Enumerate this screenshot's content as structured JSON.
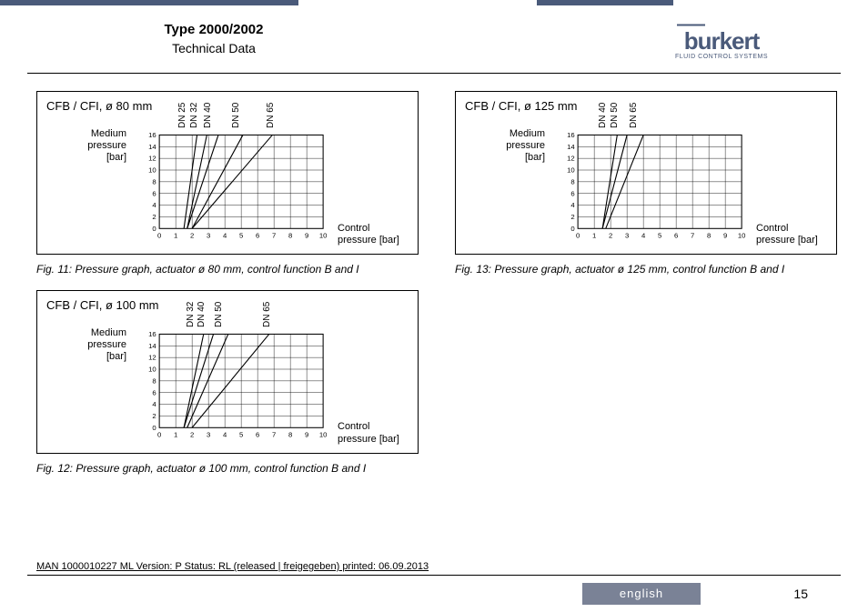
{
  "header": {
    "title": "Type 2000/2002",
    "subtitle": "Technical Data",
    "logo_main": "burkert",
    "logo_sub": "FLUID CONTROL SYSTEMS"
  },
  "charts": [
    {
      "id": "fig11",
      "box_title": "CFB / CFI, ø 80 mm",
      "caption": "Fig. 11:   Pressure graph, actuator ø 80 mm, control function B and I",
      "ylabel_line1": "Medium",
      "ylabel_line2": "pressure",
      "ylabel_line3": "[bar]",
      "xlabel_line1": "Control",
      "xlabel_line2": "pressure [bar]",
      "xlim": [
        0,
        10
      ],
      "ylim": [
        0,
        16
      ],
      "xticks": [
        0,
        1,
        2,
        3,
        4,
        5,
        6,
        7,
        8,
        9,
        10
      ],
      "yticks": [
        0,
        2,
        4,
        6,
        8,
        10,
        12,
        14,
        16
      ],
      "background_color": "#ffffff",
      "grid_color": "#000000",
      "line_color": "#000000",
      "line_width": 1.3,
      "series": [
        {
          "label": "DN 25",
          "label_x": 2.3,
          "points": [
            [
              1.5,
              0
            ],
            [
              2.3,
              16
            ]
          ]
        },
        {
          "label": "DN 32",
          "label_x": 2.9,
          "points": [
            [
              1.7,
              0
            ],
            [
              2.9,
              16
            ]
          ]
        },
        {
          "label": "DN 40",
          "label_x": 3.6,
          "points": [
            [
              1.7,
              0
            ],
            [
              3.6,
              16
            ]
          ]
        },
        {
          "label": "DN 50",
          "label_x": 5.1,
          "points": [
            [
              2,
              0
            ],
            [
              5.1,
              16
            ]
          ]
        },
        {
          "label": "DN 65",
          "label_x": 6.9,
          "points": [
            [
              2,
              0
            ],
            [
              6.9,
              16
            ]
          ]
        }
      ]
    },
    {
      "id": "fig12",
      "box_title": "CFB / CFI, ø 100 mm",
      "caption": "Fig. 12:   Pressure graph, actuator ø 100 mm, control function B and I",
      "ylabel_line1": "Medium",
      "ylabel_line2": "pressure",
      "ylabel_line3": "[bar]",
      "xlabel_line1": "Control",
      "xlabel_line2": "pressure [bar]",
      "xlim": [
        0,
        10
      ],
      "ylim": [
        0,
        16
      ],
      "xticks": [
        0,
        1,
        2,
        3,
        4,
        5,
        6,
        7,
        8,
        9,
        10
      ],
      "yticks": [
        0,
        2,
        4,
        6,
        8,
        10,
        12,
        14,
        16
      ],
      "background_color": "#ffffff",
      "grid_color": "#000000",
      "line_color": "#000000",
      "line_width": 1.3,
      "series": [
        {
          "label": "DN 32",
          "label_x": 2.7,
          "points": [
            [
              1.5,
              0
            ],
            [
              2.7,
              16
            ]
          ]
        },
        {
          "label": "DN 40",
          "label_x": 3.3,
          "points": [
            [
              1.5,
              0
            ],
            [
              3.3,
              16
            ]
          ]
        },
        {
          "label": "DN 50",
          "label_x": 4.2,
          "points": [
            [
              1.7,
              0
            ],
            [
              4.2,
              16
            ]
          ]
        },
        {
          "label": "DN 65",
          "label_x": 6.7,
          "points": [
            [
              2,
              0
            ],
            [
              6.7,
              16
            ]
          ]
        }
      ]
    },
    {
      "id": "fig13",
      "box_title": "CFB / CFI, ø 125 mm",
      "caption": "Fig. 13:   Pressure graph, actuator ø 125 mm, control function B and I",
      "ylabel_line1": "Medium",
      "ylabel_line2": "pressure",
      "ylabel_line3": "[bar]",
      "xlabel_line1": "Control",
      "xlabel_line2": "pressure [bar]",
      "xlim": [
        0,
        10
      ],
      "ylim": [
        0,
        16
      ],
      "xticks": [
        0,
        1,
        2,
        3,
        4,
        5,
        6,
        7,
        8,
        9,
        10
      ],
      "yticks": [
        0,
        2,
        4,
        6,
        8,
        10,
        12,
        14,
        16
      ],
      "background_color": "#ffffff",
      "grid_color": "#000000",
      "line_color": "#000000",
      "line_width": 1.3,
      "series": [
        {
          "label": "DN 40",
          "label_x": 2.4,
          "points": [
            [
              1.5,
              0
            ],
            [
              2.4,
              16
            ]
          ]
        },
        {
          "label": "DN 50",
          "label_x": 3.0,
          "points": [
            [
              1.5,
              0
            ],
            [
              3.0,
              16
            ]
          ]
        },
        {
          "label": "DN 65",
          "label_x": 4.0,
          "points": [
            [
              1.7,
              0
            ],
            [
              4.0,
              16
            ]
          ]
        }
      ]
    }
  ],
  "footer": {
    "meta": "MAN  1000010227  ML  Version: P Status: RL (released | freigegeben)  printed: 06.09.2013",
    "language": "english",
    "page": "15"
  }
}
